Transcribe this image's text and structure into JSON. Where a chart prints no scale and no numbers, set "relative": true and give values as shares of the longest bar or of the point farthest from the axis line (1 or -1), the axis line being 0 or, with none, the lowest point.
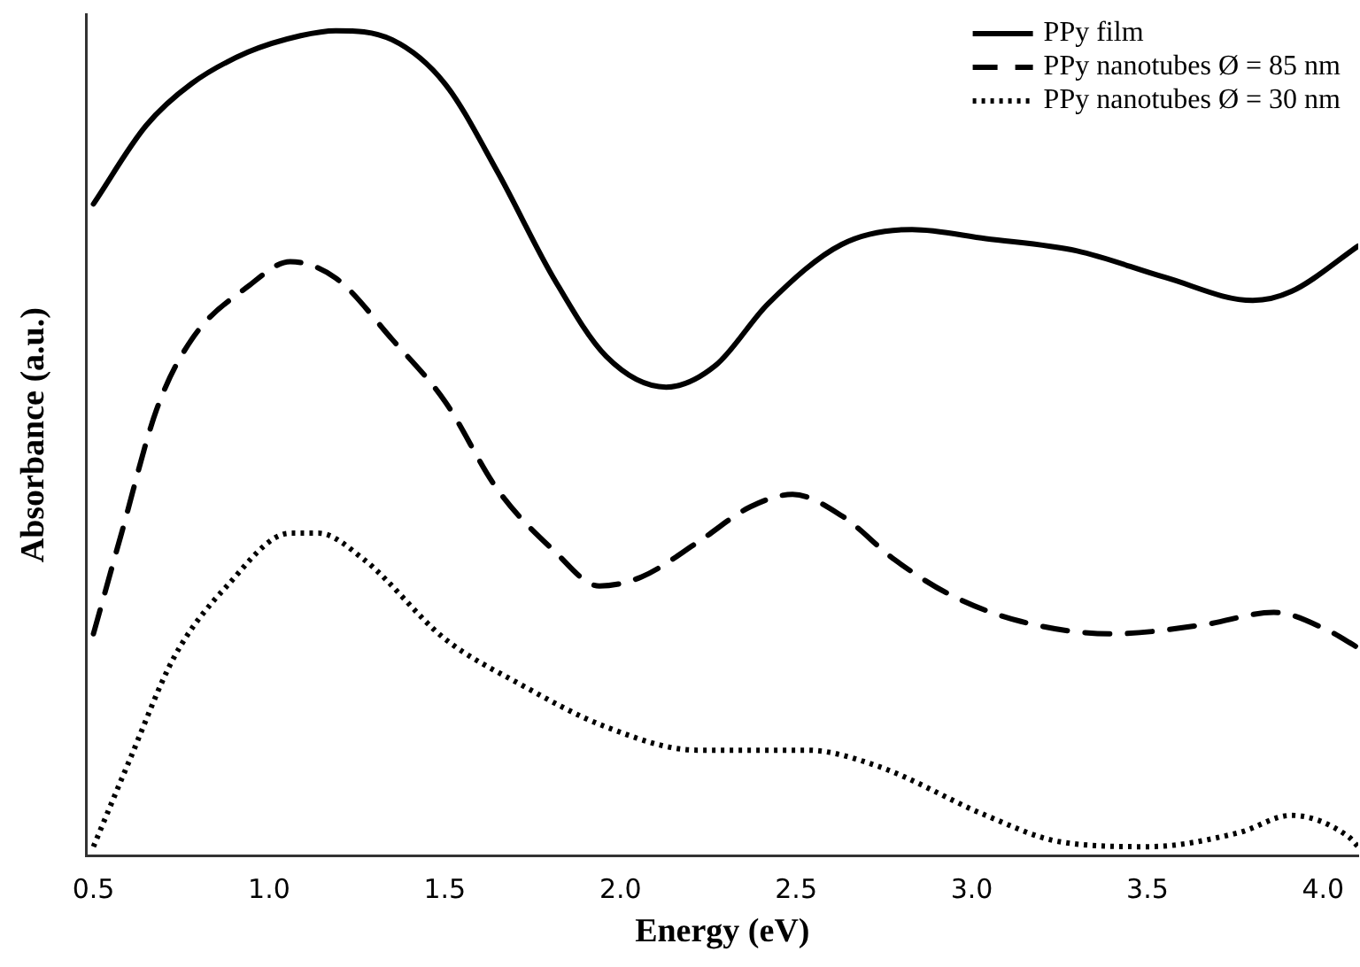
{
  "chart_data": {
    "type": "line",
    "relative": true,
    "xlabel": "Energy (eV)",
    "ylabel": "Absorbance (a.u.)",
    "xlim": [
      0.48,
      4.1
    ],
    "xticks": [
      {
        "value": 0.5,
        "label": "0.5"
      },
      {
        "value": 1,
        "label": "1.0"
      },
      {
        "value": 1.5,
        "label": "1.5"
      },
      {
        "value": 2,
        "label": "2.0"
      },
      {
        "value": 2.5,
        "label": "2.5"
      },
      {
        "value": 3,
        "label": "3.0"
      },
      {
        "value": 3.5,
        "label": "3.5"
      },
      {
        "value": 4,
        "label": "4.0"
      }
    ],
    "grid": false,
    "legend": "top right",
    "marker": "none",
    "series": [
      {
        "name": "PPy film",
        "color": "#000000",
        "line_style": "solid",
        "x": [
          0.5,
          0.65,
          0.78,
          0.94,
          1.09,
          1.19,
          1.35,
          1.5,
          1.65,
          1.81,
          1.96,
          2.13,
          2.27,
          2.42,
          2.63,
          2.83,
          3.04,
          3.3,
          3.55,
          3.8,
          3.91,
          4.1
        ],
        "values": [
          0.79,
          0.885,
          0.936,
          0.974,
          0.994,
          1.0,
          0.989,
          0.936,
          0.829,
          0.7,
          0.605,
          0.568,
          0.594,
          0.669,
          0.741,
          0.759,
          0.748,
          0.733,
          0.701,
          0.673,
          0.684,
          0.739
        ]
      },
      {
        "name": "PPy nanotubes Ø = 85 nm",
        "color": "#000000",
        "line_style": "dashed",
        "x": [
          0.5,
          0.58,
          0.68,
          0.78,
          0.94,
          1.06,
          1.19,
          1.35,
          1.5,
          1.65,
          1.81,
          1.94,
          2.06,
          2.22,
          2.37,
          2.49,
          2.63,
          2.78,
          2.94,
          3.14,
          3.4,
          3.66,
          3.86,
          4.01,
          4.1
        ],
        "values": [
          0.269,
          0.391,
          0.541,
          0.626,
          0.69,
          0.72,
          0.7,
          0.626,
          0.551,
          0.444,
          0.37,
          0.327,
          0.338,
          0.38,
          0.423,
          0.438,
          0.412,
          0.359,
          0.316,
          0.284,
          0.269,
          0.28,
          0.295,
          0.274,
          0.252
        ]
      },
      {
        "name": "PPy nanotubes Ø = 30 nm",
        "color": "#000000",
        "line_style": "dotted",
        "x": [
          0.5,
          0.6,
          0.73,
          0.88,
          1.06,
          1.14,
          1.27,
          1.5,
          1.71,
          1.96,
          2.22,
          2.53,
          2.73,
          3.04,
          3.25,
          3.5,
          3.76,
          3.91,
          4.07,
          4.1
        ],
        "values": [
          0.011,
          0.113,
          0.241,
          0.327,
          0.391,
          0.391,
          0.359,
          0.263,
          0.209,
          0.156,
          0.128,
          0.128,
          0.109,
          0.049,
          0.017,
          0.011,
          0.028,
          0.049,
          0.024,
          0.011
        ]
      }
    ]
  }
}
